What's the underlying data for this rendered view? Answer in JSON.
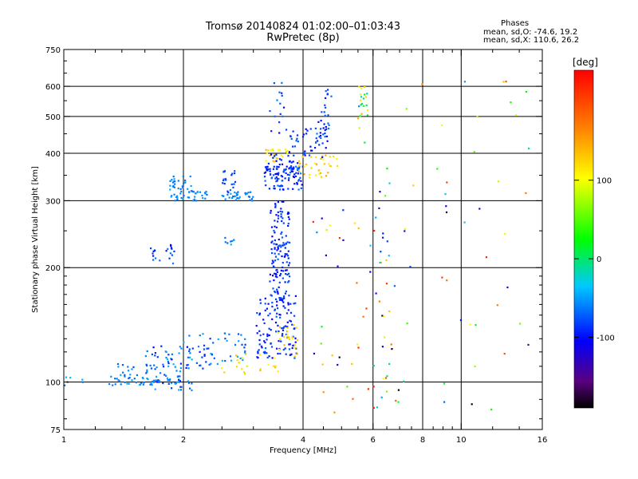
{
  "header": {
    "title": "Tromsø 20140824 01:02:00–01:03:43",
    "subtitle": "RwPretec (8p)"
  },
  "phases": {
    "title": "Phases",
    "line_o": "mean, sd,O: -74.6, 19.2",
    "line_x": "mean, sd,X: 110.6, 26.2"
  },
  "colorbar": {
    "label": "[deg]",
    "min": -190,
    "max": 240,
    "ticks": [
      100,
      0,
      -100
    ],
    "tick_labels": [
      "100",
      "0",
      "-100"
    ]
  },
  "chart_data": {
    "type": "scatter",
    "xlabel": "Frequency [MHz]",
    "ylabel": "Stationary phase Virtual Height [km]",
    "x_scale": "log",
    "y_scale": "log",
    "xlim": [
      1,
      16
    ],
    "ylim": [
      75,
      750
    ],
    "x_ticks": [
      1,
      2,
      4,
      6,
      8,
      10,
      16
    ],
    "x_tick_labels": [
      "1",
      "2",
      "4",
      "6",
      "8",
      "10",
      "16"
    ],
    "x_grid": [
      2,
      4,
      6,
      8,
      10
    ],
    "x_minor_ticks": [
      1.2,
      1.4,
      1.6,
      1.8,
      2.5,
      3,
      3.5,
      4.5,
      5,
      5.5,
      6.5,
      7,
      7.5,
      8.5,
      9,
      9.5,
      12,
      14
    ],
    "y_ticks": [
      75,
      100,
      200,
      300,
      400,
      500,
      600,
      750
    ],
    "y_tick_labels": [
      "75",
      "100",
      "200",
      "300",
      "400",
      "500",
      "600",
      "750"
    ],
    "y_grid": [
      100,
      200,
      300,
      400,
      500,
      600
    ],
    "y_minor_ticks": [
      80,
      90,
      110,
      120,
      130,
      140,
      150,
      160,
      170,
      180,
      190,
      250,
      350,
      450,
      550,
      650,
      700
    ],
    "grid": true,
    "clusters": [
      {
        "f_range": [
          1.0,
          1.15
        ],
        "h_range": [
          98,
          104
        ],
        "phase_range": [
          -70,
          -40
        ],
        "count": 6
      },
      {
        "f_range": [
          1.3,
          2.0
        ],
        "h_range": [
          98,
          104
        ],
        "phase_range": [
          -70,
          -45
        ],
        "count": 50
      },
      {
        "f_range": [
          1.55,
          2.15
        ],
        "h_range": [
          95,
          102
        ],
        "phase_range": [
          -100,
          -40
        ],
        "count": 20
      },
      {
        "f_range": [
          1.35,
          2.1
        ],
        "h_range": [
          104,
          112
        ],
        "phase_range": [
          -80,
          -40
        ],
        "count": 30
      },
      {
        "f_range": [
          1.6,
          2.3
        ],
        "h_range": [
          108,
          125
        ],
        "phase_range": [
          -110,
          -40
        ],
        "count": 35
      },
      {
        "f_range": [
          2.0,
          2.9
        ],
        "h_range": [
          110,
          135
        ],
        "phase_range": [
          -90,
          -40
        ],
        "count": 50
      },
      {
        "f_range": [
          2.3,
          2.9
        ],
        "h_range": [
          105,
          120
        ],
        "phase_range": [
          80,
          140
        ],
        "count": 12
      },
      {
        "f_range": [
          1.85,
          2.1
        ],
        "h_range": [
          300,
          350
        ],
        "phase_range": [
          -70,
          -45
        ],
        "count": 40
      },
      {
        "f_range": [
          2.0,
          2.3
        ],
        "h_range": [
          300,
          320
        ],
        "phase_range": [
          -70,
          -45
        ],
        "count": 22
      },
      {
        "f_range": [
          2.5,
          3.0
        ],
        "h_range": [
          300,
          320
        ],
        "phase_range": [
          -70,
          -45
        ],
        "count": 30
      },
      {
        "f_range": [
          2.5,
          2.75
        ],
        "h_range": [
          315,
          360
        ],
        "phase_range": [
          -100,
          -60
        ],
        "count": 22
      },
      {
        "f_range": [
          3.2,
          4.0
        ],
        "h_range": [
          320,
          370
        ],
        "phase_range": [
          -110,
          -60
        ],
        "count": 80
      },
      {
        "f_range": [
          3.2,
          3.7
        ],
        "h_range": [
          380,
          410
        ],
        "phase_range": [
          90,
          140
        ],
        "count": 22
      },
      {
        "f_range": [
          3.2,
          3.9
        ],
        "h_range": [
          345,
          400
        ],
        "phase_range": [
          -110,
          -80
        ],
        "count": 45
      },
      {
        "f_range": [
          3.9,
          4.9
        ],
        "h_range": [
          345,
          395
        ],
        "phase_range": [
          100,
          150
        ],
        "count": 35
      },
      {
        "f_range": [
          3.6,
          4.6
        ],
        "h_range": [
          390,
          470
        ],
        "phase_range": [
          -110,
          -70
        ],
        "count": 35
      },
      {
        "f_range": [
          4.3,
          4.65
        ],
        "h_range": [
          420,
          520
        ],
        "phase_range": [
          -110,
          -60
        ],
        "count": 25
      },
      {
        "f_range": [
          4.4,
          4.8
        ],
        "h_range": [
          500,
          630
        ],
        "phase_range": [
          -110,
          -50
        ],
        "count": 10
      },
      {
        "f_range": [
          5.5,
          5.9
        ],
        "h_range": [
          420,
          600
        ],
        "phase_range": [
          -60,
          150
        ],
        "count": 22
      },
      {
        "f_range": [
          3.3,
          3.6
        ],
        "h_range": [
          420,
          620
        ],
        "phase_range": [
          -110,
          -60
        ],
        "count": 15
      },
      {
        "f_range": [
          3.05,
          3.85
        ],
        "h_range": [
          115,
          170
        ],
        "phase_range": [
          -110,
          -70
        ],
        "count": 120
      },
      {
        "f_range": [
          3.3,
          3.7
        ],
        "h_range": [
          160,
          300
        ],
        "phase_range": [
          -110,
          -70
        ],
        "count": 140
      },
      {
        "f_range": [
          3.1,
          3.5
        ],
        "h_range": [
          105,
          120
        ],
        "phase_range": [
          100,
          150
        ],
        "count": 10
      },
      {
        "f_range": [
          3.45,
          3.95
        ],
        "h_range": [
          115,
          145
        ],
        "phase_range": [
          100,
          150
        ],
        "count": 22
      },
      {
        "f_range": [
          1.65,
          1.9
        ],
        "h_range": [
          205,
          230
        ],
        "phase_range": [
          -110,
          -60
        ],
        "count": 20
      },
      {
        "f_range": [
          2.5,
          2.75
        ],
        "h_range": [
          225,
          240
        ],
        "phase_range": [
          -70,
          -40
        ],
        "count": 8
      },
      {
        "f_range": [
          4.2,
          7.5
        ],
        "h_range": [
          80,
          300
        ],
        "phase_range": [
          -190,
          230
        ],
        "count": 55
      },
      {
        "f_range": [
          6.2,
          6.6
        ],
        "h_range": [
          95,
          400
        ],
        "phase_range": [
          -140,
          200
        ],
        "count": 20
      },
      {
        "f_range": [
          7.2,
          15.0
        ],
        "h_range": [
          80,
          650
        ],
        "phase_range": [
          -190,
          230
        ],
        "count": 40
      }
    ]
  }
}
